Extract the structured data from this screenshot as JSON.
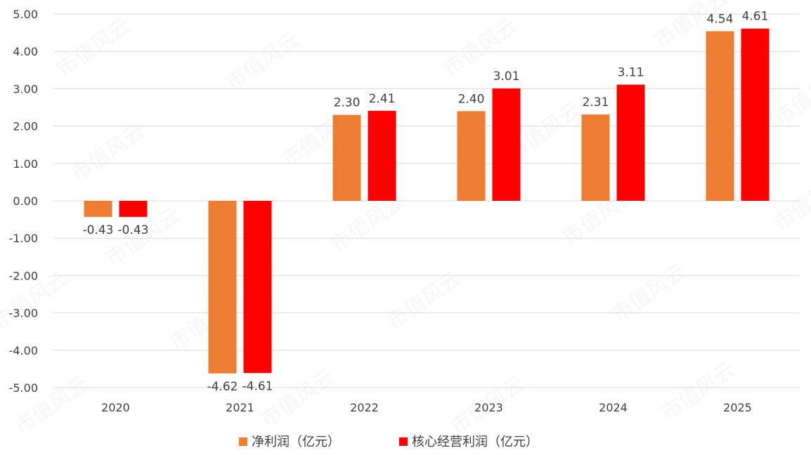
{
  "chart_data": {
    "type": "bar",
    "categories": [
      "2020",
      "2021",
      "2022",
      "2023",
      "2024",
      "2025"
    ],
    "series": [
      {
        "name": "净利润（亿元）",
        "color": "#ED7D31",
        "values": [
          -0.43,
          -4.62,
          2.3,
          2.4,
          2.31,
          4.54
        ],
        "labels": [
          "-0.43",
          "-4.62",
          "2.30",
          "2.40",
          "2.31",
          "4.54"
        ]
      },
      {
        "name": "核心经营利润（亿元）",
        "color": "#FF0000",
        "values": [
          -0.43,
          -4.61,
          2.41,
          3.01,
          3.11,
          4.61
        ],
        "labels": [
          "-0.43",
          "-4.61",
          "2.41",
          "3.01",
          "3.11",
          "4.61"
        ]
      }
    ],
    "ylim": [
      -5,
      5
    ],
    "yticks": [
      "5.00",
      "4.00",
      "3.00",
      "2.00",
      "1.00",
      "0.00",
      "-1.00",
      "-2.00",
      "-3.00",
      "-4.00",
      "-5.00"
    ],
    "grid": true,
    "legend_position": "bottom",
    "xlabel": "",
    "ylabel": ""
  },
  "watermark": "市值风云"
}
